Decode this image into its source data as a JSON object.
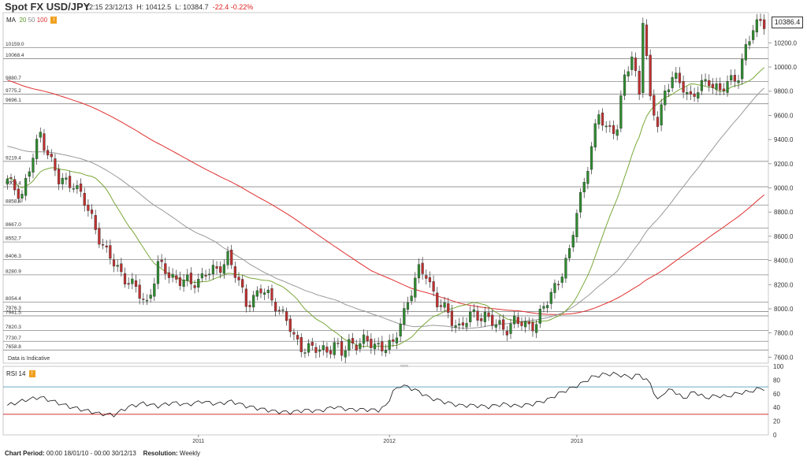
{
  "header": {
    "title": "Spot FX USD/JPY",
    "time": "12:15 23/12/13",
    "high": "H: 10412.5",
    "low": "L: 10384.7",
    "change": "-22.4",
    "change_pct": "-0.22%",
    "last_price": "10386.4"
  },
  "ma_legend": {
    "label": "MA",
    "p1": "20",
    "p2": "50",
    "p3": "100"
  },
  "rsi_legend": {
    "label": "RSI 14"
  },
  "note": "Data is Indicative",
  "footer": {
    "period_label": "Chart Period:",
    "period_value": "00:00 18/01/10 - 00:00 30/12/13",
    "resolution_label": "Resolution:",
    "resolution_value": "Weekly"
  },
  "chart_data": {
    "type": "candlestick",
    "colors": {
      "up": "#2e8b2e",
      "down": "#c03030",
      "ma20": "#7aa83a",
      "ma50": "#999999",
      "ma100": "#e03030",
      "rsi": "#111111",
      "rsi_upper": "#6aa6c8",
      "rsi_lower": "#d03030",
      "grid": "#888888"
    },
    "price_axis": {
      "min": 7550,
      "max": 10450,
      "ticks": [
        7600,
        7800,
        8000,
        8200,
        8400,
        8600,
        8800,
        9000,
        9200,
        9400,
        9600,
        9800,
        10000,
        10200
      ]
    },
    "rsi_axis": {
      "min": 0,
      "max": 100,
      "ticks": [
        0,
        20,
        40,
        60,
        80,
        100
      ],
      "upper": 70,
      "lower": 30
    },
    "x_labels": [
      {
        "label": "2011",
        "x": 52
      },
      {
        "label": "2012",
        "x": 104
      },
      {
        "label": "2013",
        "x": 155
      }
    ],
    "total_weeks": 207,
    "levels": [
      "10159.0",
      "10068.4",
      "9880.7",
      "9775.2",
      "9696.1",
      "9219.4",
      "9009.4",
      "8858.4",
      "8667.0",
      "8552.7",
      "8406.3",
      "8280.9",
      "8054.4",
      "7976.3",
      "7941.5",
      "7820.3",
      "7730.7",
      "7658.8"
    ],
    "anchors": [
      [
        0,
        9050
      ],
      [
        4,
        8950
      ],
      [
        9,
        9450
      ],
      [
        11,
        9300
      ],
      [
        14,
        9050
      ],
      [
        18,
        9050
      ],
      [
        23,
        8750
      ],
      [
        27,
        8450
      ],
      [
        31,
        8300
      ],
      [
        35,
        8150
      ],
      [
        38,
        8050
      ],
      [
        41,
        8350
      ],
      [
        46,
        8250
      ],
      [
        50,
        8200
      ],
      [
        54,
        8300
      ],
      [
        57,
        8300
      ],
      [
        60,
        8450
      ],
      [
        63,
        8200
      ],
      [
        65,
        8050
      ],
      [
        69,
        8150
      ],
      [
        73,
        8050
      ],
      [
        76,
        7900
      ],
      [
        78,
        7750
      ],
      [
        81,
        7680
      ],
      [
        85,
        7650
      ],
      [
        89,
        7700
      ],
      [
        91,
        7620
      ],
      [
        93,
        7720
      ],
      [
        97,
        7720
      ],
      [
        101,
        7700
      ],
      [
        105,
        7680
      ],
      [
        107,
        7900
      ],
      [
        110,
        8150
      ],
      [
        112,
        8300
      ],
      [
        114,
        8300
      ],
      [
        117,
        8050
      ],
      [
        120,
        7950
      ],
      [
        123,
        7850
      ],
      [
        127,
        7950
      ],
      [
        130,
        7950
      ],
      [
        133,
        7850
      ],
      [
        136,
        7850
      ],
      [
        138,
        7900
      ],
      [
        141,
        7850
      ],
      [
        144,
        7900
      ],
      [
        147,
        8050
      ],
      [
        150,
        8250
      ],
      [
        153,
        8450
      ],
      [
        155,
        8800
      ],
      [
        158,
        9200
      ],
      [
        161,
        9600
      ],
      [
        163,
        9500
      ],
      [
        166,
        9500
      ],
      [
        168,
        9900
      ],
      [
        170,
        10100
      ],
      [
        172,
        9800
      ],
      [
        173,
        10400
      ],
      [
        175,
        9700
      ],
      [
        177,
        9550
      ],
      [
        179,
        9800
      ],
      [
        181,
        9900
      ],
      [
        184,
        9850
      ],
      [
        186,
        9750
      ],
      [
        188,
        9800
      ],
      [
        191,
        9900
      ],
      [
        194,
        9800
      ],
      [
        196,
        9850
      ],
      [
        199,
        9950
      ],
      [
        201,
        10150
      ],
      [
        203,
        10300
      ],
      [
        205,
        10390
      ],
      [
        206,
        10386
      ]
    ],
    "rsi_anchors": [
      [
        0,
        43
      ],
      [
        5,
        51
      ],
      [
        9,
        55
      ],
      [
        13,
        48
      ],
      [
        17,
        41
      ],
      [
        21,
        36
      ],
      [
        25,
        31
      ],
      [
        29,
        29
      ],
      [
        33,
        41
      ],
      [
        37,
        46
      ],
      [
        41,
        42
      ],
      [
        45,
        47
      ],
      [
        49,
        44
      ],
      [
        53,
        49
      ],
      [
        57,
        45
      ],
      [
        61,
        49
      ],
      [
        65,
        42
      ],
      [
        69,
        38
      ],
      [
        73,
        34
      ],
      [
        77,
        33
      ],
      [
        81,
        36
      ],
      [
        85,
        35
      ],
      [
        89,
        41
      ],
      [
        93,
        37
      ],
      [
        97,
        37
      ],
      [
        101,
        36
      ],
      [
        103,
        42
      ],
      [
        105,
        63
      ],
      [
        107,
        72
      ],
      [
        109,
        70
      ],
      [
        112,
        63
      ],
      [
        115,
        54
      ],
      [
        119,
        48
      ],
      [
        123,
        43
      ],
      [
        127,
        43
      ],
      [
        131,
        41
      ],
      [
        135,
        45
      ],
      [
        139,
        42
      ],
      [
        143,
        45
      ],
      [
        147,
        51
      ],
      [
        150,
        60
      ],
      [
        153,
        67
      ],
      [
        156,
        74
      ],
      [
        159,
        84
      ],
      [
        162,
        88
      ],
      [
        165,
        89
      ],
      [
        168,
        86
      ],
      [
        170,
        84
      ],
      [
        172,
        88
      ],
      [
        175,
        75
      ],
      [
        177,
        50
      ],
      [
        179,
        63
      ],
      [
        181,
        66
      ],
      [
        184,
        53
      ],
      [
        187,
        63
      ],
      [
        190,
        54
      ],
      [
        193,
        57
      ],
      [
        196,
        56
      ],
      [
        199,
        61
      ],
      [
        202,
        63
      ],
      [
        205,
        68
      ],
      [
        206,
        67
      ]
    ]
  }
}
